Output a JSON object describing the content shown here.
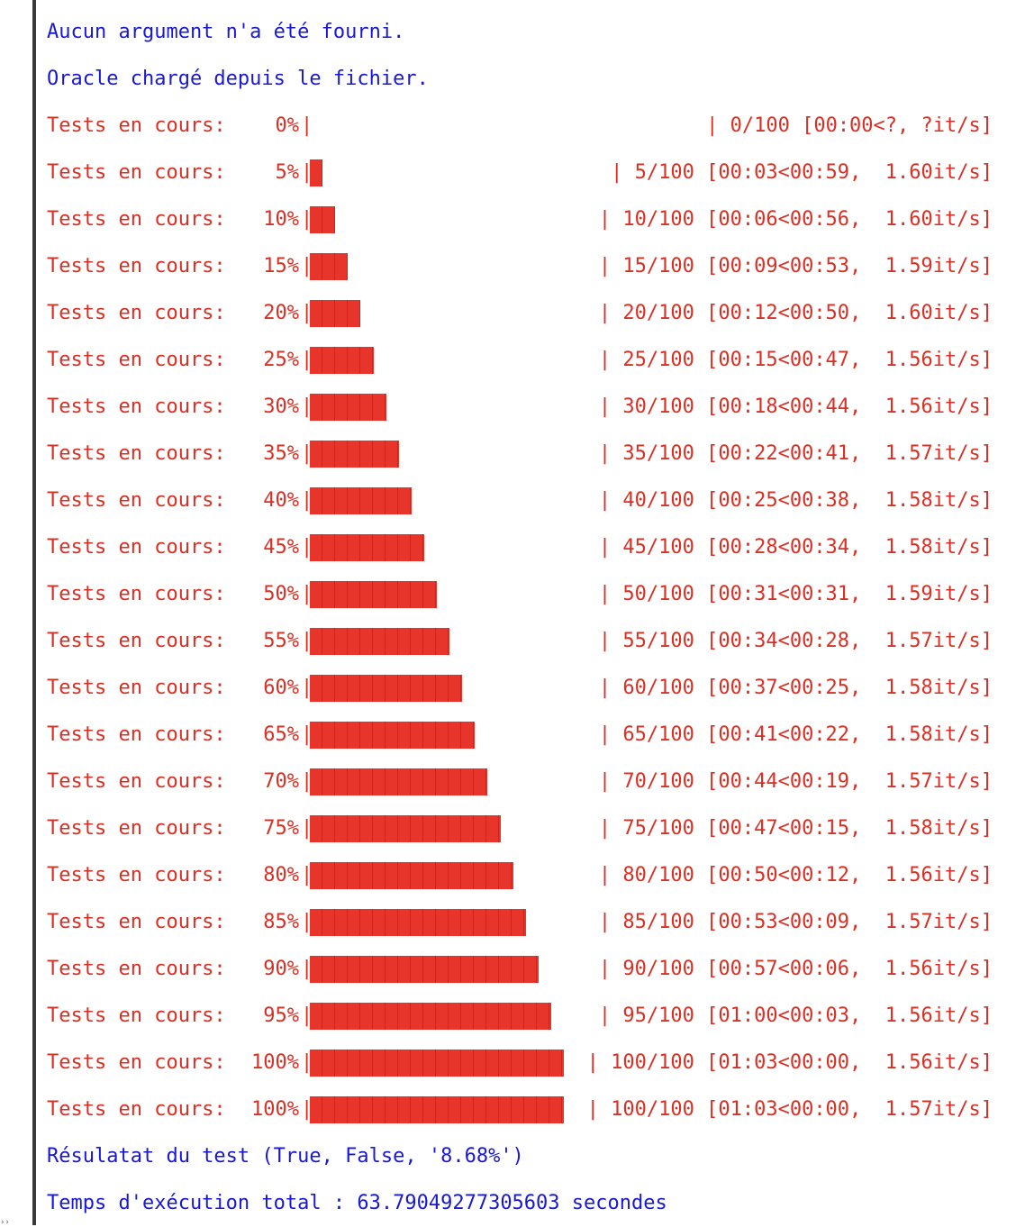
{
  "console": {
    "messages_top": [
      "Aucun argument n'a été fourni.",
      "Oracle chargé depuis le fichier."
    ],
    "progress_label": "Tests en cours:",
    "progress_rows": [
      {
        "percent": "0%",
        "progress": 0.0,
        "count_sep": "|",
        "count": "0/100",
        "timing": "[00:00<?, ?it/s]"
      },
      {
        "percent": "5%",
        "progress": 0.05,
        "count_sep": "|",
        "count": "5/100",
        "timing": "[00:03<00:59,  1.60it/s]"
      },
      {
        "percent": "10%",
        "progress": 0.1,
        "count_sep": "|",
        "count": "10/100",
        "timing": "[00:06<00:56,  1.60it/s]"
      },
      {
        "percent": "15%",
        "progress": 0.15,
        "count_sep": "|",
        "count": "15/100",
        "timing": "[00:09<00:53,  1.59it/s]"
      },
      {
        "percent": "20%",
        "progress": 0.2,
        "count_sep": "|",
        "count": "20/100",
        "timing": "[00:12<00:50,  1.60it/s]"
      },
      {
        "percent": "25%",
        "progress": 0.25,
        "count_sep": "|",
        "count": "25/100",
        "timing": "[00:15<00:47,  1.56it/s]"
      },
      {
        "percent": "30%",
        "progress": 0.3,
        "count_sep": "|",
        "count": "30/100",
        "timing": "[00:18<00:44,  1.56it/s]"
      },
      {
        "percent": "35%",
        "progress": 0.35,
        "count_sep": "|",
        "count": "35/100",
        "timing": "[00:22<00:41,  1.57it/s]"
      },
      {
        "percent": "40%",
        "progress": 0.4,
        "count_sep": "|",
        "count": "40/100",
        "timing": "[00:25<00:38,  1.58it/s]"
      },
      {
        "percent": "45%",
        "progress": 0.45,
        "count_sep": "|",
        "count": "45/100",
        "timing": "[00:28<00:34,  1.58it/s]"
      },
      {
        "percent": "50%",
        "progress": 0.5,
        "count_sep": "|",
        "count": "50/100",
        "timing": "[00:31<00:31,  1.59it/s]"
      },
      {
        "percent": "55%",
        "progress": 0.55,
        "count_sep": "|",
        "count": "55/100",
        "timing": "[00:34<00:28,  1.57it/s]"
      },
      {
        "percent": "60%",
        "progress": 0.6,
        "count_sep": "|",
        "count": "60/100",
        "timing": "[00:37<00:25,  1.58it/s]"
      },
      {
        "percent": "65%",
        "progress": 0.65,
        "count_sep": "|",
        "count": "65/100",
        "timing": "[00:41<00:22,  1.58it/s]"
      },
      {
        "percent": "70%",
        "progress": 0.7,
        "count_sep": "|",
        "count": "70/100",
        "timing": "[00:44<00:19,  1.57it/s]"
      },
      {
        "percent": "75%",
        "progress": 0.75,
        "count_sep": "|",
        "count": "75/100",
        "timing": "[00:47<00:15,  1.58it/s]"
      },
      {
        "percent": "80%",
        "progress": 0.8,
        "count_sep": "|",
        "count": "80/100",
        "timing": "[00:50<00:12,  1.56it/s]"
      },
      {
        "percent": "85%",
        "progress": 0.85,
        "count_sep": "|",
        "count": "85/100",
        "timing": "[00:53<00:09,  1.57it/s]"
      },
      {
        "percent": "90%",
        "progress": 0.9,
        "count_sep": "|",
        "count": "90/100",
        "timing": "[00:57<00:06,  1.56it/s]"
      },
      {
        "percent": "95%",
        "progress": 0.95,
        "count_sep": "|",
        "count": "95/100",
        "timing": "[01:00<00:03,  1.56it/s]"
      },
      {
        "percent": "100%",
        "progress": 1.0,
        "count_sep": "|",
        "count": "100/100",
        "timing": "[01:03<00:00,  1.56it/s]"
      },
      {
        "percent": "100%",
        "progress": 1.0,
        "count_sep": "|",
        "count": "100/100",
        "timing": "[01:03<00:00,  1.57it/s]"
      }
    ],
    "bar_open": "|",
    "messages_bottom": [
      "Résulatat du test (True, False, '8.68%')",
      "Temps d'exécution total : 63.79049277305603 secondes"
    ]
  },
  "colors": {
    "info_text": "#1818d6",
    "progress_text": "#d93025",
    "bar_fill": "#e8352b"
  }
}
